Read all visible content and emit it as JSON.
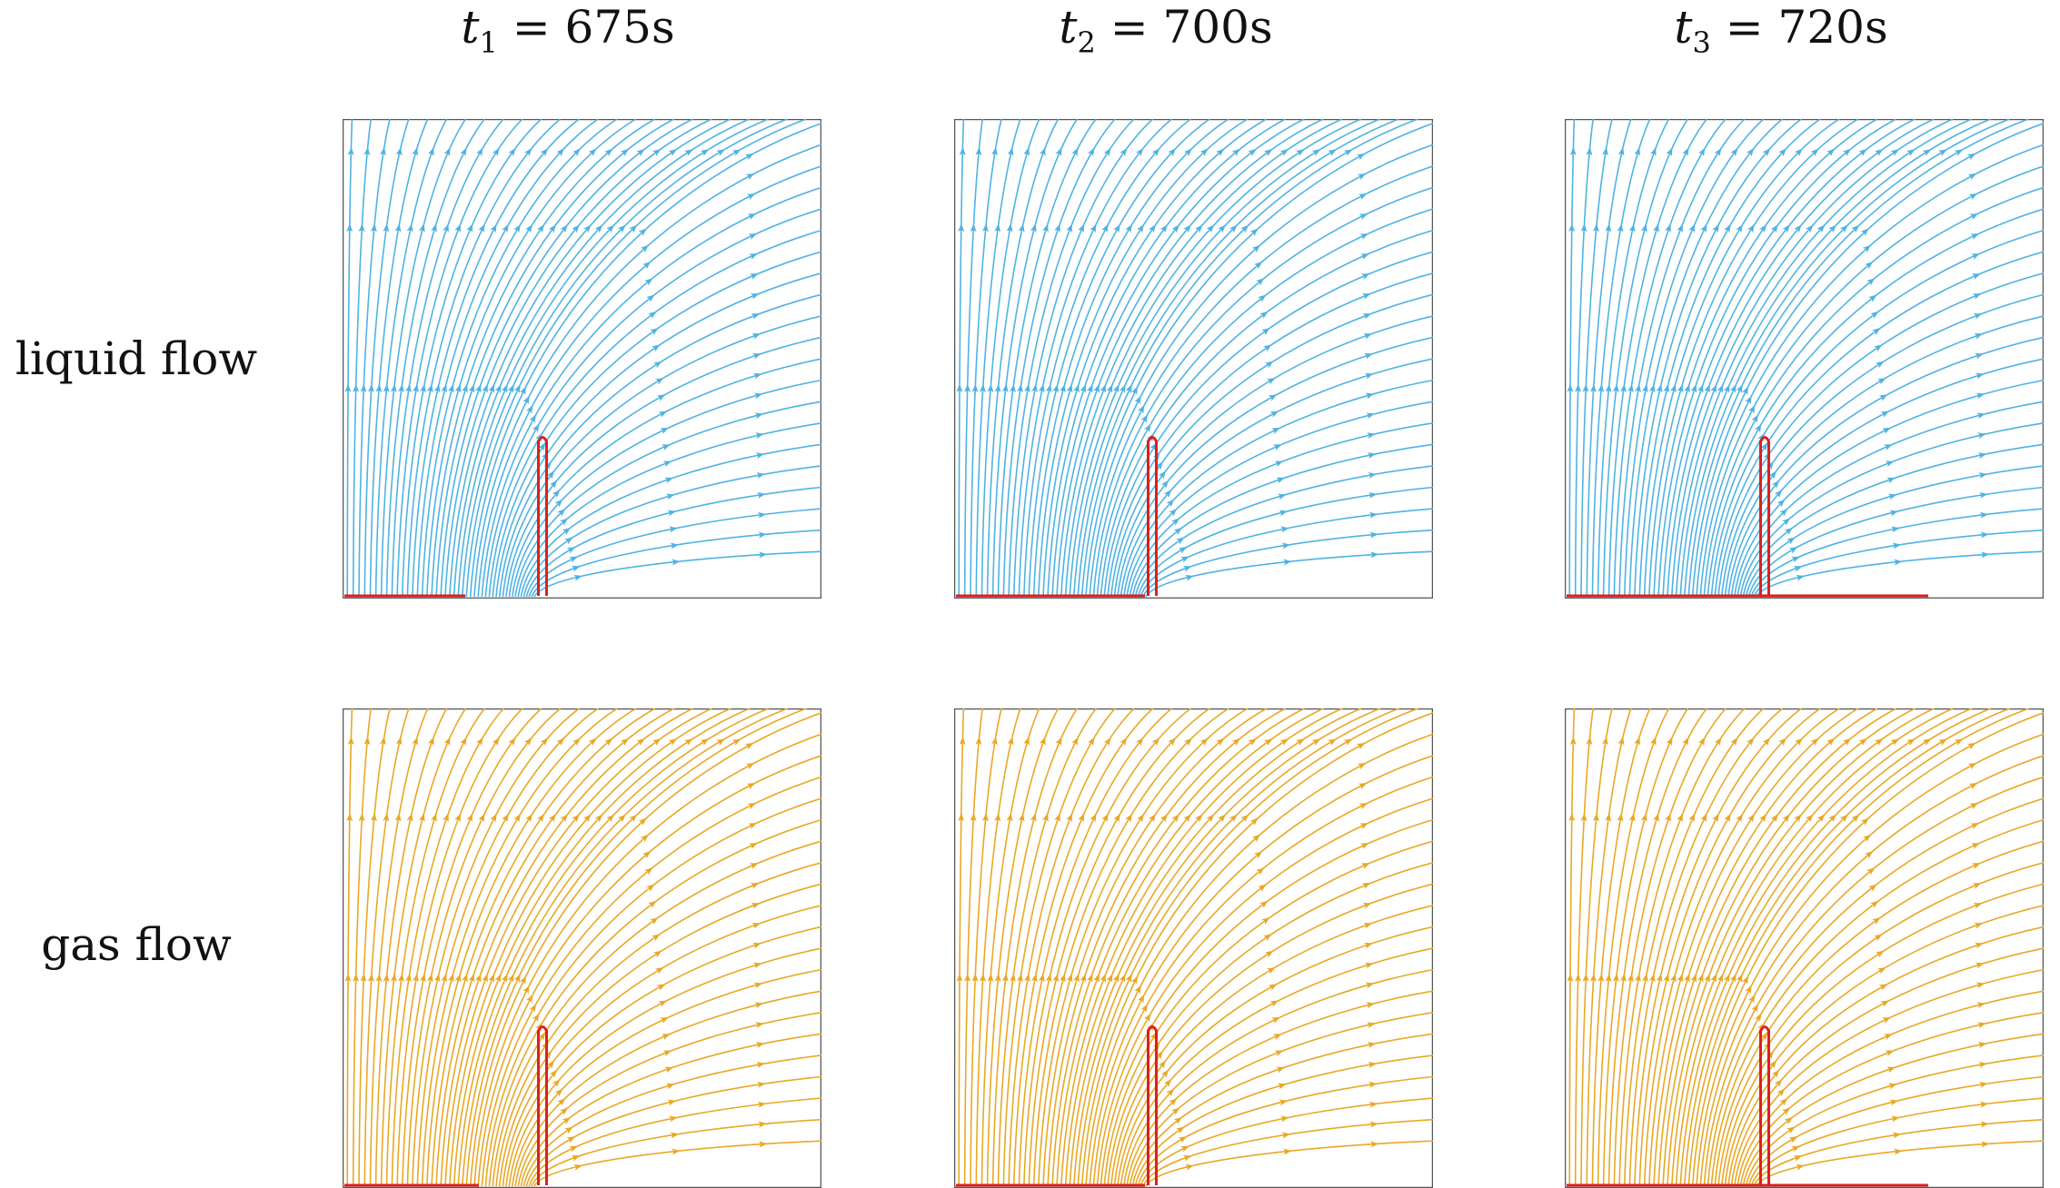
{
  "columns": [
    {
      "var": "t",
      "sub": "1",
      "eq": "=",
      "num": "675",
      "unit": "s"
    },
    {
      "var": "t",
      "sub": "2",
      "eq": "=",
      "num": "700",
      "unit": "s"
    },
    {
      "var": "t",
      "sub": "3",
      "eq": "=",
      "num": "720",
      "unit": "s"
    }
  ],
  "rows": [
    {
      "label": "liquid flow",
      "color": "#4fb3e3"
    },
    {
      "label": "gas flow",
      "color": "#e9a825"
    }
  ],
  "interface_color": "#dd1f1f",
  "frame_color": "#555555"
}
